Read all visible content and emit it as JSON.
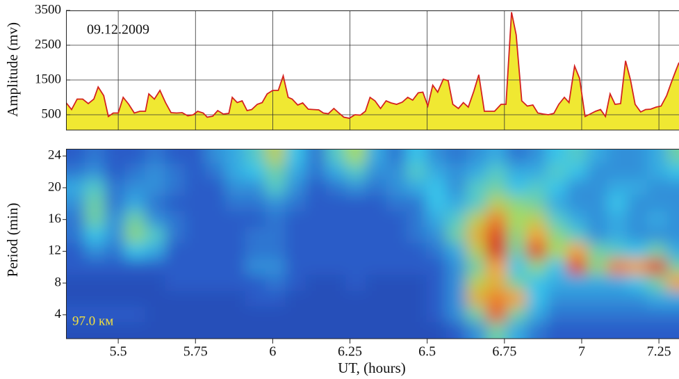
{
  "chart_data": [
    {
      "type": "area",
      "ylabel": "Amplitude (mv)",
      "annotation": "09.12.2009",
      "ylim": [
        60,
        3500
      ],
      "yticks": [
        500,
        1500,
        2500,
        3500
      ],
      "grid": true,
      "color": "#f0e832",
      "line_color": "#d42020",
      "x": [
        5.331,
        5.349,
        5.367,
        5.385,
        5.403,
        5.421,
        5.435,
        5.453,
        5.468,
        5.484,
        5.5,
        5.516,
        5.534,
        5.552,
        5.57,
        5.588,
        5.599,
        5.617,
        5.635,
        5.653,
        5.671,
        5.689,
        5.707,
        5.725,
        5.743,
        5.757,
        5.775,
        5.788,
        5.806,
        5.822,
        5.84,
        5.858,
        5.869,
        5.885,
        5.901,
        5.917,
        5.932,
        5.95,
        5.966,
        5.982,
        6.0,
        6.018,
        6.034,
        6.05,
        6.063,
        6.081,
        6.097,
        6.115,
        6.131,
        6.149,
        6.164,
        6.18,
        6.198,
        6.214,
        6.23,
        6.248,
        6.266,
        6.284,
        6.3,
        6.315,
        6.331,
        6.349,
        6.367,
        6.383,
        6.401,
        6.419,
        6.437,
        6.453,
        6.471,
        6.486,
        6.502,
        6.518,
        6.534,
        6.552,
        6.568,
        6.583,
        6.601,
        6.617,
        6.633,
        6.651,
        6.667,
        6.685,
        6.7,
        6.718,
        6.739,
        6.755,
        6.773,
        6.788,
        6.806,
        6.824,
        6.842,
        6.858,
        6.876,
        6.892,
        6.91,
        6.926,
        6.944,
        6.959,
        6.977,
        6.993,
        7.011,
        7.027,
        7.045,
        7.061,
        7.077,
        7.092,
        7.108,
        7.126,
        7.142,
        7.158,
        7.173,
        7.191,
        7.207,
        7.223,
        7.241,
        7.257,
        7.275,
        7.291,
        7.306,
        7.315
      ],
      "values": [
        850,
        650,
        950,
        950,
        820,
        950,
        1300,
        1050,
        450,
        550,
        550,
        1000,
        800,
        550,
        600,
        600,
        1100,
        950,
        1200,
        850,
        560,
        550,
        560,
        470,
        500,
        600,
        550,
        430,
        460,
        620,
        520,
        540,
        1000,
        850,
        900,
        620,
        650,
        800,
        850,
        1100,
        1200,
        1200,
        1620,
        1000,
        950,
        780,
        840,
        660,
        650,
        640,
        550,
        530,
        680,
        550,
        430,
        400,
        500,
        490,
        600,
        1000,
        900,
        680,
        900,
        840,
        800,
        860,
        1000,
        920,
        1130,
        1150,
        750,
        1350,
        1150,
        1520,
        1480,
        800,
        680,
        850,
        720,
        1180,
        1650,
        600,
        600,
        600,
        800,
        800,
        3450,
        2800,
        900,
        750,
        780,
        550,
        520,
        500,
        540,
        800,
        1000,
        850,
        1900,
        1550,
        450,
        520,
        600,
        650,
        450,
        1100,
        800,
        820,
        2050,
        1500,
        800,
        580,
        650,
        660,
        720,
        750,
        1050,
        1450,
        1800,
        2000
      ]
    },
    {
      "type": "heatmap",
      "ylabel": "Period (min)",
      "xlabel": "UT, (hours)",
      "annotation": "97.0 км",
      "xlim": [
        5.331,
        7.315
      ],
      "xticks": [
        5.5,
        5.75,
        6,
        6.25,
        6.5,
        6.75,
        7,
        7.25
      ],
      "ylim": [
        1,
        24.9
      ],
      "yticks": [
        4,
        8,
        12,
        16,
        20,
        24
      ],
      "colorscale": [
        "#18288a",
        "#2a5cc8",
        "#38c4ea",
        "#a6dc5e",
        "#f4a22a",
        "#d81414"
      ],
      "x": [
        5.36,
        5.425,
        5.49,
        5.555,
        5.62,
        5.685,
        5.75,
        5.815,
        5.88,
        5.945,
        6.01,
        6.075,
        6.14,
        6.205,
        6.27,
        6.335,
        6.4,
        6.465,
        6.53,
        6.595,
        6.66,
        6.725,
        6.79,
        6.855,
        6.92,
        6.985,
        7.05,
        7.115,
        7.18,
        7.245,
        7.31
      ],
      "y": [
        24,
        22,
        20,
        18,
        16,
        14,
        12,
        10,
        8,
        6,
        4,
        2
      ],
      "z": [
        [
          0.2,
          0.25,
          0.2,
          0.2,
          0.25,
          0.2,
          0.2,
          0.3,
          0.35,
          0.45,
          0.65,
          0.4,
          0.25,
          0.45,
          0.6,
          0.35,
          0.25,
          0.4,
          0.3,
          0.25,
          0.3,
          0.35,
          0.25,
          0.3,
          0.4,
          0.45,
          0.35,
          0.3,
          0.3,
          0.35,
          0.5
        ],
        [
          0.25,
          0.3,
          0.2,
          0.25,
          0.3,
          0.25,
          0.2,
          0.25,
          0.35,
          0.4,
          0.5,
          0.35,
          0.25,
          0.35,
          0.45,
          0.3,
          0.3,
          0.45,
          0.35,
          0.3,
          0.35,
          0.45,
          0.35,
          0.35,
          0.45,
          0.4,
          0.3,
          0.3,
          0.3,
          0.35,
          0.4
        ],
        [
          0.35,
          0.45,
          0.25,
          0.3,
          0.3,
          0.25,
          0.2,
          0.2,
          0.3,
          0.3,
          0.45,
          0.3,
          0.2,
          0.25,
          0.3,
          0.25,
          0.3,
          0.35,
          0.4,
          0.3,
          0.45,
          0.5,
          0.4,
          0.45,
          0.4,
          0.3,
          0.3,
          0.35,
          0.35,
          0.3,
          0.3
        ],
        [
          0.3,
          0.5,
          0.25,
          0.35,
          0.25,
          0.2,
          0.2,
          0.2,
          0.25,
          0.25,
          0.3,
          0.25,
          0.2,
          0.2,
          0.2,
          0.2,
          0.25,
          0.25,
          0.4,
          0.35,
          0.45,
          0.65,
          0.55,
          0.5,
          0.35,
          0.3,
          0.3,
          0.4,
          0.3,
          0.3,
          0.3
        ],
        [
          0.25,
          0.5,
          0.3,
          0.5,
          0.3,
          0.25,
          0.2,
          0.2,
          0.2,
          0.2,
          0.25,
          0.2,
          0.2,
          0.2,
          0.2,
          0.2,
          0.2,
          0.25,
          0.35,
          0.45,
          0.65,
          0.85,
          0.6,
          0.65,
          0.45,
          0.35,
          0.3,
          0.35,
          0.3,
          0.35,
          0.3
        ],
        [
          0.25,
          0.4,
          0.3,
          0.55,
          0.45,
          0.25,
          0.2,
          0.2,
          0.2,
          0.25,
          0.25,
          0.2,
          0.2,
          0.2,
          0.2,
          0.2,
          0.2,
          0.25,
          0.3,
          0.5,
          0.75,
          0.95,
          0.55,
          0.8,
          0.55,
          0.45,
          0.3,
          0.35,
          0.3,
          0.3,
          0.3
        ],
        [
          0.2,
          0.3,
          0.25,
          0.4,
          0.35,
          0.2,
          0.2,
          0.2,
          0.2,
          0.25,
          0.25,
          0.2,
          0.2,
          0.2,
          0.2,
          0.2,
          0.2,
          0.2,
          0.25,
          0.35,
          0.65,
          1,
          0.5,
          0.95,
          0.6,
          0.8,
          0.5,
          0.45,
          0.4,
          0.5,
          0.35
        ],
        [
          0.2,
          0.2,
          0.2,
          0.2,
          0.2,
          0.2,
          0.2,
          0.2,
          0.2,
          0.3,
          0.3,
          0.2,
          0.2,
          0.2,
          0.2,
          0.2,
          0.2,
          0.2,
          0.2,
          0.3,
          0.5,
          0.8,
          0.4,
          0.55,
          0.4,
          0.95,
          0.55,
          0.85,
          0.8,
          0.95,
          0.5
        ],
        [
          0.15,
          0.15,
          0.15,
          0.15,
          0.15,
          0.2,
          0.2,
          0.2,
          0.2,
          0.2,
          0.25,
          0.2,
          0.15,
          0.15,
          0.2,
          0.15,
          0.15,
          0.15,
          0.2,
          0.3,
          0.65,
          0.75,
          0.5,
          0.4,
          0.35,
          0.35,
          0.35,
          0.35,
          0.4,
          0.5,
          0.8
        ],
        [
          0.15,
          0.15,
          0.15,
          0.15,
          0.15,
          0.15,
          0.15,
          0.15,
          0.15,
          0.2,
          0.2,
          0.15,
          0.15,
          0.15,
          0.15,
          0.15,
          0.15,
          0.15,
          0.2,
          0.3,
          0.75,
          0.85,
          0.8,
          0.4,
          0.3,
          0.3,
          0.3,
          0.3,
          0.3,
          0.35,
          0.35
        ],
        [
          0.2,
          0.2,
          0.2,
          0.2,
          0.15,
          0.15,
          0.15,
          0.15,
          0.15,
          0.15,
          0.15,
          0.15,
          0.15,
          0.15,
          0.15,
          0.15,
          0.15,
          0.15,
          0.2,
          0.3,
          0.5,
          0.9,
          0.5,
          0.35,
          0.25,
          0.25,
          0.25,
          0.25,
          0.25,
          0.25,
          0.25
        ],
        [
          0.15,
          0.15,
          0.15,
          0.15,
          0.15,
          0.15,
          0.15,
          0.15,
          0.15,
          0.15,
          0.15,
          0.15,
          0.15,
          0.15,
          0.15,
          0.15,
          0.15,
          0.15,
          0.15,
          0.2,
          0.3,
          0.5,
          0.35,
          0.25,
          0.2,
          0.2,
          0.2,
          0.2,
          0.2,
          0.2,
          0.2
        ]
      ]
    }
  ]
}
